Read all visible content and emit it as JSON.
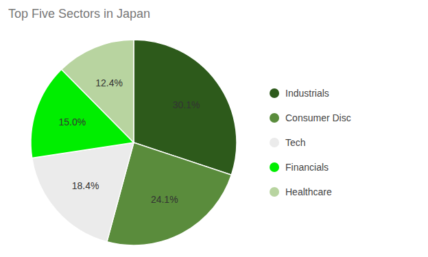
{
  "chart_data": {
    "type": "pie",
    "title": "Top Five Sectors in Japan",
    "categories": [
      "Industrials",
      "Consumer Disc",
      "Tech",
      "Financials",
      "Healthcare"
    ],
    "values": [
      30.1,
      24.1,
      18.4,
      15.0,
      12.4
    ],
    "value_labels": [
      "30.1%",
      "24.1%",
      "18.4%",
      "15.0%",
      "12.4%"
    ],
    "colors": [
      "#2d5a1b",
      "#5a8c3c",
      "#ebebeb",
      "#00ee00",
      "#b8d4a0"
    ],
    "data_labels": true,
    "legend": "right"
  }
}
